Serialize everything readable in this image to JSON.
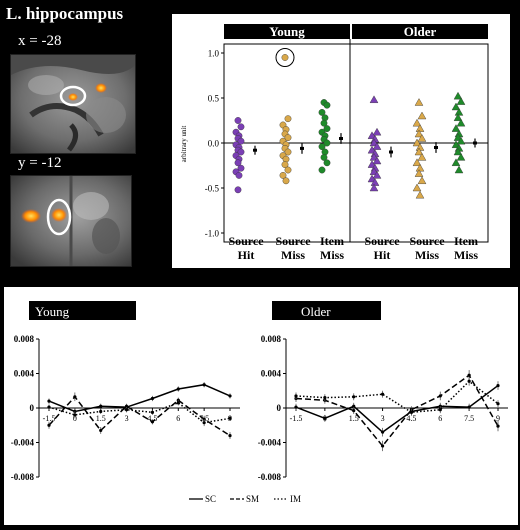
{
  "title": "L. hippocampus",
  "brain": {
    "sagittal_label": "x = -28",
    "coronal_label": "y = -12"
  },
  "colors": {
    "source_hit": "#7b3fb5",
    "source_miss": "#d9a84a",
    "item_miss": "#1f8a2a",
    "header_bg": "#000000",
    "activation": "#ff9a00"
  },
  "chart_data": [
    {
      "type": "scatter",
      "title": "",
      "groups": [
        "Young",
        "Older"
      ],
      "ylabel": "arbitrary unit",
      "ylim": [
        -1.1,
        1.1
      ],
      "yticks": [
        -1.0,
        -0.5,
        0.0,
        0.5,
        1.0
      ],
      "ytick_labels": [
        "-1.0",
        "-0.5",
        "0.0",
        "0.5",
        "1.0"
      ],
      "categories": [
        "Source\nHit",
        "Source\nMiss",
        "Item\nMiss",
        "Source\nHit",
        "Source\nMiss",
        "Item\nMiss"
      ],
      "series": [
        {
          "group": "Young",
          "condition": "Source Hit",
          "marker": "circle",
          "color": "#7b3fb5",
          "values": [
            0.25,
            0.18,
            0.12,
            0.08,
            0.05,
            0.02,
            -0.02,
            -0.05,
            -0.08,
            -0.1,
            -0.14,
            -0.18,
            -0.22,
            -0.28,
            -0.32,
            -0.36,
            -0.52
          ],
          "mean": -0.08,
          "error": 0.05
        },
        {
          "group": "Young",
          "condition": "Source Miss",
          "marker": "circle",
          "color": "#d9a84a",
          "values": [
            0.95,
            0.27,
            0.2,
            0.15,
            0.1,
            0.06,
            0.02,
            -0.02,
            -0.06,
            -0.1,
            -0.14,
            -0.18,
            -0.24,
            -0.3,
            -0.36,
            -0.42
          ],
          "mean": -0.06,
          "error": 0.06
        },
        {
          "group": "Young",
          "condition": "Item Miss",
          "marker": "circle",
          "color": "#1f8a2a",
          "values": [
            0.45,
            0.42,
            0.34,
            0.28,
            0.22,
            0.16,
            0.12,
            0.08,
            0.04,
            0.0,
            -0.04,
            -0.1,
            -0.16,
            -0.22,
            -0.3
          ],
          "mean": 0.05,
          "error": 0.06
        },
        {
          "group": "Older",
          "condition": "Source Hit",
          "marker": "triangle",
          "color": "#7b3fb5",
          "values": [
            0.48,
            0.12,
            0.08,
            0.04,
            0.0,
            -0.04,
            -0.08,
            -0.12,
            -0.16,
            -0.2,
            -0.24,
            -0.28,
            -0.32,
            -0.36,
            -0.4,
            -0.44,
            -0.5
          ],
          "mean": -0.1,
          "error": 0.06
        },
        {
          "group": "Older",
          "condition": "Source Miss",
          "marker": "triangle",
          "color": "#d9a84a",
          "values": [
            0.45,
            0.3,
            0.22,
            0.16,
            0.1,
            0.05,
            0.0,
            -0.05,
            -0.1,
            -0.16,
            -0.22,
            -0.28,
            -0.34,
            -0.42,
            -0.5,
            -0.58
          ],
          "mean": -0.05,
          "error": 0.06
        },
        {
          "group": "Older",
          "condition": "Item Miss",
          "marker": "triangle",
          "color": "#1f8a2a",
          "values": [
            0.52,
            0.46,
            0.4,
            0.34,
            0.28,
            0.22,
            0.16,
            0.1,
            0.06,
            0.02,
            -0.02,
            -0.06,
            -0.1,
            -0.16,
            -0.22,
            -0.3
          ],
          "mean": 0.0,
          "error": 0.05
        }
      ]
    },
    {
      "type": "line",
      "title": "Young",
      "ylim": [
        -0.008,
        0.008
      ],
      "yticks": [
        -0.008,
        -0.004,
        0,
        0.004,
        0.008
      ],
      "ytick_labels": [
        "-0.008",
        "-0.004",
        "0",
        "0.004",
        "0.008"
      ],
      "x": [
        -1.5,
        0,
        1.5,
        3,
        4.5,
        6,
        7.5,
        9
      ],
      "xtick_labels": [
        "-1.5",
        "0",
        "1.5",
        "3",
        "4.5",
        "6",
        "7.5",
        "9"
      ],
      "series": [
        {
          "name": "SC",
          "style": "solid",
          "values": [
            0.0008,
            -0.0004,
            0.0002,
            0.0001,
            0.0011,
            0.0022,
            0.0027,
            0.0014
          ],
          "errors": [
            0.0003,
            0.0004,
            0.0003,
            0.0003,
            0.0003,
            0.0003,
            0.0003,
            0.0003
          ]
        },
        {
          "name": "SM",
          "style": "dashed",
          "values": [
            -0.002,
            0.0013,
            -0.0026,
            0.0002,
            -0.0016,
            0.0009,
            -0.0013,
            -0.0032
          ],
          "errors": [
            0.0004,
            0.0005,
            0.0004,
            0.0003,
            0.0003,
            0.0003,
            0.0004,
            0.0004
          ]
        },
        {
          "name": "IM",
          "style": "dotted",
          "values": [
            0.0001,
            -0.0008,
            -0.0004,
            -0.0002,
            -0.0005,
            0.0006,
            -0.0017,
            -0.0012
          ],
          "errors": [
            0.0003,
            0.0004,
            0.0003,
            0.0003,
            0.0003,
            0.0003,
            0.0004,
            0.0003
          ]
        }
      ]
    },
    {
      "type": "line",
      "title": "Older",
      "ylim": [
        -0.008,
        0.008
      ],
      "yticks": [
        -0.008,
        -0.004,
        0,
        0.004,
        0.008
      ],
      "ytick_labels": [
        "-0.008",
        "-0.004",
        "0",
        "0.004",
        "0.008"
      ],
      "x": [
        -1.5,
        0,
        1.5,
        3,
        4.5,
        6,
        7.5,
        9
      ],
      "xtick_labels": [
        "-1.5",
        "0",
        "1.5",
        "3",
        "4.5",
        "6",
        "7.5",
        "9"
      ],
      "series": [
        {
          "name": "SC",
          "style": "solid",
          "values": [
            0.0001,
            -0.0012,
            0.0002,
            -0.0028,
            -0.0004,
            0.0002,
            0.0001,
            0.0026
          ],
          "errors": [
            0.0004,
            0.0004,
            0.0004,
            0.0005,
            0.0004,
            0.0004,
            0.0004,
            0.0005
          ]
        },
        {
          "name": "SM",
          "style": "dashed",
          "values": [
            0.0011,
            0.0009,
            -0.0003,
            -0.0044,
            -0.0002,
            0.0014,
            0.0038,
            -0.0021
          ],
          "errors": [
            0.0004,
            0.0004,
            0.0004,
            0.0006,
            0.0004,
            0.0005,
            0.0006,
            0.0006
          ]
        },
        {
          "name": "IM",
          "style": "dotted",
          "values": [
            0.0014,
            0.0012,
            0.0013,
            0.0016,
            -0.0005,
            -0.0002,
            0.0031,
            0.0005
          ],
          "errors": [
            0.0004,
            0.0004,
            0.0004,
            0.0004,
            0.0004,
            0.0004,
            0.0005,
            0.0004
          ]
        }
      ]
    }
  ],
  "legend": {
    "items": [
      {
        "label": "SC",
        "style": "solid"
      },
      {
        "label": "SM",
        "style": "dashed"
      },
      {
        "label": "IM",
        "style": "dotted"
      }
    ]
  }
}
